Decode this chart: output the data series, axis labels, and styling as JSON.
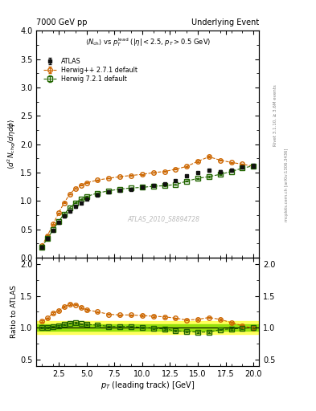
{
  "title_left": "7000 GeV pp",
  "title_right": "Underlying Event",
  "watermark": "ATLAS_2010_S8894728",
  "right_label_top": "Rivet 3.1.10, ≥ 3.6M events",
  "right_label_bottom": "mcplots.cern.ch [arXiv:1306.3436]",
  "xlim": [
    0.5,
    20.5
  ],
  "ylim_main": [
    0,
    4
  ],
  "ylim_ratio": [
    0.4,
    2.1
  ],
  "atlas_x": [
    1.0,
    1.5,
    2.0,
    2.5,
    3.0,
    3.5,
    4.0,
    4.5,
    5.0,
    6.0,
    7.0,
    8.0,
    9.0,
    10.0,
    11.0,
    12.0,
    13.0,
    14.0,
    15.0,
    16.0,
    17.0,
    18.0,
    19.0,
    20.0
  ],
  "atlas_y": [
    0.19,
    0.34,
    0.48,
    0.62,
    0.73,
    0.82,
    0.9,
    0.97,
    1.03,
    1.1,
    1.16,
    1.19,
    1.21,
    1.24,
    1.27,
    1.3,
    1.36,
    1.44,
    1.5,
    1.54,
    1.52,
    1.55,
    1.6,
    1.62
  ],
  "atlas_yerr": [
    0.015,
    0.015,
    0.015,
    0.015,
    0.015,
    0.015,
    0.015,
    0.015,
    0.015,
    0.015,
    0.015,
    0.015,
    0.015,
    0.015,
    0.015,
    0.015,
    0.015,
    0.015,
    0.02,
    0.02,
    0.02,
    0.02,
    0.02,
    0.03
  ],
  "herwig_x": [
    1.0,
    1.5,
    2.0,
    2.5,
    3.0,
    3.5,
    4.0,
    4.5,
    5.0,
    6.0,
    7.0,
    8.0,
    9.0,
    10.0,
    11.0,
    12.0,
    13.0,
    14.0,
    15.0,
    16.0,
    17.0,
    18.0,
    19.0,
    20.0
  ],
  "herwig_y": [
    0.21,
    0.39,
    0.59,
    0.79,
    0.97,
    1.12,
    1.22,
    1.28,
    1.32,
    1.37,
    1.4,
    1.43,
    1.45,
    1.47,
    1.5,
    1.52,
    1.56,
    1.61,
    1.7,
    1.78,
    1.72,
    1.68,
    1.65,
    1.61
  ],
  "herwig_yerr": [
    0.005,
    0.005,
    0.005,
    0.005,
    0.005,
    0.005,
    0.005,
    0.005,
    0.005,
    0.005,
    0.005,
    0.005,
    0.005,
    0.005,
    0.005,
    0.005,
    0.007,
    0.01,
    0.012,
    0.012,
    0.01,
    0.01,
    0.01,
    0.01
  ],
  "herwig7_x": [
    1.0,
    1.5,
    2.0,
    2.5,
    3.0,
    3.5,
    4.0,
    4.5,
    5.0,
    6.0,
    7.0,
    8.0,
    9.0,
    10.0,
    11.0,
    12.0,
    13.0,
    14.0,
    15.0,
    16.0,
    17.0,
    18.0,
    19.0,
    20.0
  ],
  "herwig7_y": [
    0.19,
    0.34,
    0.49,
    0.64,
    0.77,
    0.88,
    0.97,
    1.03,
    1.08,
    1.14,
    1.18,
    1.21,
    1.23,
    1.24,
    1.26,
    1.27,
    1.29,
    1.35,
    1.4,
    1.43,
    1.47,
    1.52,
    1.58,
    1.62
  ],
  "herwig7_yerr": [
    0.005,
    0.005,
    0.005,
    0.005,
    0.005,
    0.005,
    0.005,
    0.005,
    0.005,
    0.005,
    0.005,
    0.005,
    0.005,
    0.005,
    0.005,
    0.005,
    0.005,
    0.007,
    0.008,
    0.008,
    0.008,
    0.01,
    0.01,
    0.01
  ],
  "atlas_color": "#111111",
  "herwig_color": "#cc6600",
  "herwig7_color": "#226600",
  "ratio_herwig_y": [
    1.1,
    1.15,
    1.23,
    1.27,
    1.33,
    1.37,
    1.36,
    1.32,
    1.28,
    1.25,
    1.21,
    1.2,
    1.2,
    1.19,
    1.18,
    1.17,
    1.15,
    1.12,
    1.13,
    1.16,
    1.13,
    1.08,
    1.03,
    0.99
  ],
  "ratio_herwig7_y": [
    1.0,
    1.0,
    1.02,
    1.03,
    1.05,
    1.07,
    1.08,
    1.06,
    1.05,
    1.04,
    1.02,
    1.02,
    1.02,
    1.0,
    0.99,
    0.98,
    0.95,
    0.94,
    0.93,
    0.93,
    0.97,
    0.98,
    0.99,
    1.0
  ],
  "ratio_herwig_yerr": [
    0.01,
    0.01,
    0.01,
    0.01,
    0.01,
    0.01,
    0.01,
    0.01,
    0.01,
    0.01,
    0.01,
    0.01,
    0.01,
    0.01,
    0.01,
    0.01,
    0.01,
    0.01,
    0.01,
    0.01,
    0.01,
    0.01,
    0.01,
    0.01
  ],
  "ratio_herwig7_yerr": [
    0.01,
    0.01,
    0.01,
    0.01,
    0.01,
    0.01,
    0.01,
    0.01,
    0.01,
    0.01,
    0.01,
    0.01,
    0.01,
    0.01,
    0.01,
    0.01,
    0.01,
    0.01,
    0.01,
    0.01,
    0.01,
    0.01,
    0.01,
    0.01
  ],
  "ratio_band_yellow_lo": 0.9,
  "ratio_band_yellow_hi": 1.1,
  "ratio_band_green_lo": 0.95,
  "ratio_band_green_hi": 1.05,
  "yticks_main": [
    0,
    0.5,
    1.0,
    1.5,
    2.0,
    2.5,
    3.0,
    3.5,
    4.0
  ],
  "yticks_ratio": [
    0.5,
    1.0,
    1.5,
    2.0
  ]
}
